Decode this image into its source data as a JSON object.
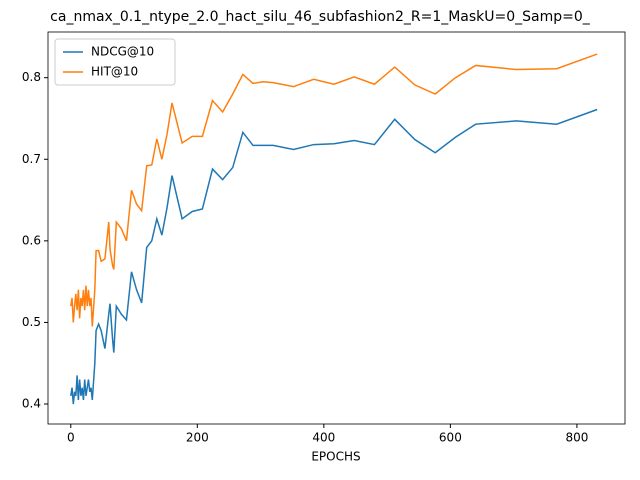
{
  "chart_data": {
    "type": "line",
    "title": "ca_nmax_0.1_ntype_2.0_hact_silu_46_subfashion2_R=1_MaskU=0_Samp=0_",
    "x_label": "EPOCHS",
    "x": [
      0,
      2,
      4,
      6,
      8,
      10,
      12,
      14,
      16,
      18,
      20,
      22,
      24,
      26,
      28,
      30,
      32,
      34,
      38,
      40,
      44,
      48,
      54,
      60,
      62,
      66,
      68,
      72,
      80,
      88,
      96,
      104,
      112,
      120,
      128,
      136,
      144,
      152,
      160,
      176,
      192,
      208,
      224,
      240,
      256,
      272,
      288,
      304,
      320,
      352,
      384,
      416,
      448,
      480,
      512,
      544,
      576,
      608,
      640,
      704,
      768,
      832
    ],
    "series": [
      {
        "name": "NDCG@10",
        "color": "#1f77b4",
        "values": [
          0.41,
          0.42,
          0.4,
          0.415,
          0.41,
          0.435,
          0.405,
          0.43,
          0.41,
          0.42,
          0.405,
          0.43,
          0.41,
          0.42,
          0.43,
          0.415,
          0.42,
          0.405,
          0.45,
          0.49,
          0.498,
          0.49,
          0.468,
          0.51,
          0.523,
          0.48,
          0.463,
          0.52,
          0.51,
          0.503,
          0.562,
          0.54,
          0.524,
          0.592,
          0.6,
          0.627,
          0.607,
          0.64,
          0.68,
          0.627,
          0.636,
          0.639,
          0.688,
          0.675,
          0.69,
          0.733,
          0.717,
          0.717,
          0.717,
          0.712,
          0.718,
          0.719,
          0.723,
          0.718,
          0.749,
          0.724,
          0.708,
          0.727,
          0.743,
          0.747,
          0.743,
          0.761
        ]
      },
      {
        "name": "HIT@10",
        "color": "#ff7f0e",
        "values": [
          0.52,
          0.53,
          0.5,
          0.52,
          0.535,
          0.515,
          0.54,
          0.505,
          0.53,
          0.52,
          0.54,
          0.515,
          0.545,
          0.52,
          0.54,
          0.52,
          0.53,
          0.495,
          0.54,
          0.588,
          0.588,
          0.575,
          0.578,
          0.623,
          0.59,
          0.57,
          0.565,
          0.623,
          0.615,
          0.6,
          0.662,
          0.645,
          0.637,
          0.692,
          0.693,
          0.725,
          0.7,
          0.73,
          0.769,
          0.72,
          0.728,
          0.728,
          0.772,
          0.758,
          0.78,
          0.804,
          0.793,
          0.795,
          0.794,
          0.789,
          0.798,
          0.792,
          0.801,
          0.792,
          0.813,
          0.791,
          0.78,
          0.8,
          0.815,
          0.81,
          0.811,
          0.829
        ]
      }
    ],
    "xlim": [
      -36,
      876
    ],
    "xticks": [
      0,
      200,
      400,
      600,
      800
    ],
    "ylim": [
      0.3755,
      0.856
    ],
    "yticks": [
      0.4,
      0.5,
      0.6,
      0.7,
      0.8
    ],
    "legend": "upper left"
  }
}
